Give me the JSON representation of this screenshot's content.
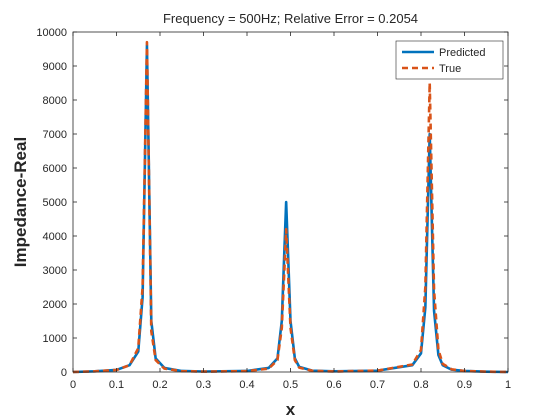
{
  "chart_data": {
    "type": "line",
    "title": "Frequency = 500Hz; Relative Error = 0.2054",
    "xlabel": "x",
    "ylabel": "Impedance-Real",
    "xlim": [
      0,
      1
    ],
    "ylim": [
      0,
      10000
    ],
    "xticks": [
      "0",
      "0.1",
      "0.2",
      "0.3",
      "0.4",
      "0.5",
      "0.6",
      "0.7",
      "0.8",
      "0.9",
      "1"
    ],
    "yticks": [
      "0",
      "1000",
      "2000",
      "3000",
      "4000",
      "5000",
      "6000",
      "7000",
      "8000",
      "9000",
      "10000"
    ],
    "grid": false,
    "legend_position": "top-right",
    "series": [
      {
        "name": "Predicted",
        "color": "#0072BD",
        "style": "solid",
        "x": [
          0,
          0.05,
          0.1,
          0.13,
          0.15,
          0.16,
          0.17,
          0.18,
          0.19,
          0.21,
          0.25,
          0.3,
          0.4,
          0.45,
          0.47,
          0.48,
          0.49,
          0.5,
          0.51,
          0.52,
          0.55,
          0.6,
          0.7,
          0.78,
          0.8,
          0.81,
          0.82,
          0.83,
          0.84,
          0.85,
          0.87,
          0.9,
          0.95,
          1
        ],
        "y": [
          0,
          20,
          60,
          200,
          600,
          2200,
          9600,
          1500,
          400,
          120,
          30,
          15,
          30,
          120,
          400,
          1500,
          5000,
          1500,
          400,
          150,
          40,
          20,
          40,
          200,
          550,
          1900,
          7000,
          1800,
          500,
          200,
          70,
          30,
          10,
          0
        ]
      },
      {
        "name": "True",
        "color": "#D95319",
        "style": "dashed",
        "x": [
          0,
          0.05,
          0.1,
          0.13,
          0.15,
          0.16,
          0.17,
          0.18,
          0.19,
          0.21,
          0.25,
          0.3,
          0.4,
          0.45,
          0.47,
          0.48,
          0.49,
          0.5,
          0.51,
          0.52,
          0.55,
          0.6,
          0.7,
          0.78,
          0.8,
          0.81,
          0.82,
          0.83,
          0.84,
          0.85,
          0.87,
          0.9,
          0.95,
          1
        ],
        "y": [
          0,
          20,
          60,
          200,
          700,
          2500,
          9700,
          1200,
          350,
          100,
          25,
          12,
          25,
          100,
          350,
          1300,
          4200,
          1300,
          350,
          130,
          35,
          15,
          40,
          220,
          650,
          2500,
          8500,
          2400,
          650,
          240,
          80,
          30,
          10,
          0
        ]
      }
    ]
  }
}
